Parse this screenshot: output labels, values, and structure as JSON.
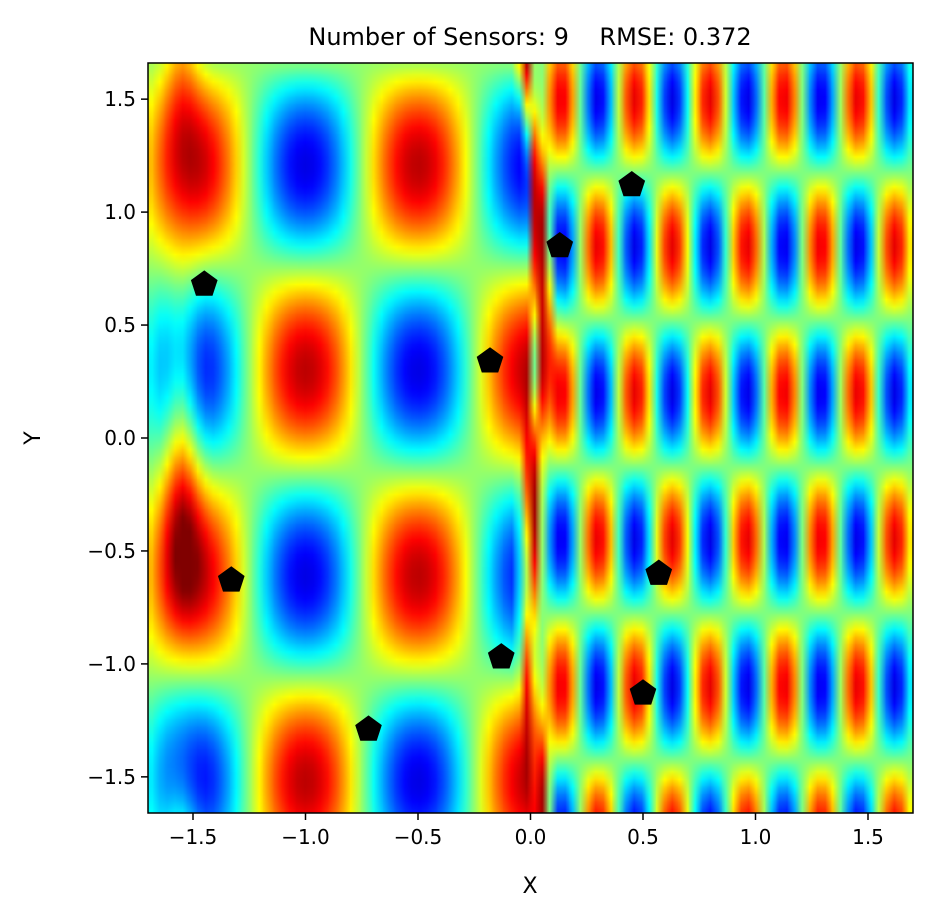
{
  "chart_data": {
    "type": "heatmap",
    "title": "Number of Sensors: 9    RMSE: 0.372",
    "xlabel": "X",
    "ylabel": "Y",
    "xlim": [
      -1.7,
      1.7
    ],
    "ylim": [
      -1.66,
      1.66
    ],
    "xticks": [
      -1.5,
      -1.0,
      -0.5,
      0.0,
      0.5,
      1.0,
      1.5
    ],
    "xtick_labels": [
      "−1.5",
      "−1.0",
      "−0.5",
      "0.0",
      "0.5",
      "1.0",
      "1.5"
    ],
    "yticks": [
      1.5,
      1.0,
      0.5,
      0.0,
      -0.5,
      -1.0,
      -1.5
    ],
    "ytick_labels": [
      "1.5",
      "1.0",
      "0.5",
      "0.0",
      "−0.5",
      "−1.0",
      "−1.5"
    ],
    "colormap": "jet",
    "grid": false,
    "sensor_marker": "pentagon",
    "sensor_color": "#000000",
    "sensors": [
      {
        "x": -1.45,
        "y": 0.68
      },
      {
        "x": -1.33,
        "y": -0.63
      },
      {
        "x": -0.72,
        "y": -1.29
      },
      {
        "x": -0.18,
        "y": 0.34
      },
      {
        "x": -0.13,
        "y": -0.97
      },
      {
        "x": 0.13,
        "y": 0.85
      },
      {
        "x": 0.45,
        "y": 1.12
      },
      {
        "x": 0.5,
        "y": -1.13
      },
      {
        "x": 0.57,
        "y": -0.6
      }
    ]
  }
}
